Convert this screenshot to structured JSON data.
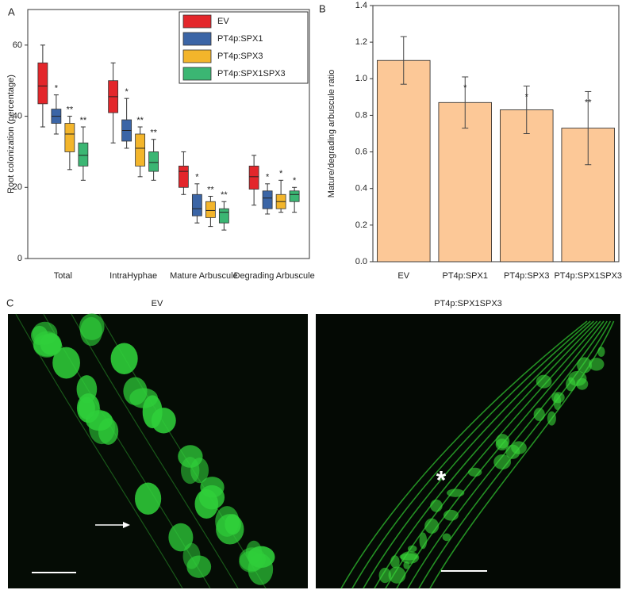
{
  "panel_labels": [
    "A",
    "B",
    "C"
  ],
  "chart_data": [
    {
      "type": "box",
      "ylabel": "Root colonization (percentage)",
      "categories": [
        "Total",
        "IntraHyphae",
        "Mature Arbuscule",
        "Degrading Arbuscule"
      ],
      "series": [
        {
          "name": "EV",
          "color": "#e3262b",
          "values": [
            [
              37,
              43.5,
              48.5,
              55,
              60
            ],
            [
              32.5,
              41,
              45.5,
              50,
              55
            ],
            [
              18,
              20,
              24.5,
              26,
              30
            ],
            [
              15,
              19.5,
              23,
              26,
              29
            ]
          ]
        },
        {
          "name": "PT4p:SPX1",
          "color": "#3b65a6",
          "values": [
            [
              35,
              38,
              40,
              42,
              46
            ],
            [
              31,
              33,
              36,
              39,
              45
            ],
            [
              10,
              12,
              14,
              18,
              21
            ],
            [
              12.5,
              14,
              17,
              19,
              21
            ]
          ],
          "annotations": [
            "*",
            "*",
            "*",
            "*"
          ]
        },
        {
          "name": "PT4p:SPX3",
          "color": "#f3b52b",
          "values": [
            [
              25,
              30,
              35,
              38,
              40
            ],
            [
              23,
              26,
              31,
              35,
              37
            ],
            [
              9,
              11.5,
              13.5,
              16,
              17.5
            ],
            [
              13,
              14,
              16,
              18,
              22
            ]
          ],
          "annotations": [
            "**",
            "**",
            "**",
            "*"
          ]
        },
        {
          "name": "PT4p:SPX1SPX3",
          "color": "#3bb673",
          "values": [
            [
              22,
              26,
              29,
              32.5,
              37
            ],
            [
              22,
              24.5,
              27,
              30,
              33.5
            ],
            [
              8,
              10,
              13,
              14,
              16
            ],
            [
              13,
              16,
              18,
              19,
              20
            ]
          ],
          "annotations": [
            "**",
            "**",
            "**",
            "*"
          ]
        }
      ],
      "ylim": [
        0,
        70
      ],
      "yticks": [
        0,
        20,
        40,
        60
      ],
      "legend": "upper right"
    },
    {
      "type": "bar",
      "ylabel": "Mature/degrading arbuscule ratio",
      "categories": [
        "EV",
        "PT4p:SPX1",
        "PT4p:SPX3",
        "PT4p:SPX1SPX3"
      ],
      "values": [
        1.1,
        0.87,
        0.83,
        0.73
      ],
      "errors": [
        0.13,
        0.14,
        0.13,
        0.2
      ],
      "annotations": [
        null,
        "*",
        "*",
        "**"
      ],
      "color": "#fcc897",
      "ylim": [
        0,
        1.4
      ],
      "yticks": [
        {
          "value": 0,
          "label": "0.0"
        },
        0.2,
        0.4,
        0.6,
        0.8,
        {
          "value": 1,
          "label": "1.0"
        },
        1.2,
        1.4
      ]
    }
  ],
  "images": [
    {
      "title": "EV"
    },
    {
      "title": "PT4p:SPX1SPX3",
      "marker": "*"
    }
  ]
}
